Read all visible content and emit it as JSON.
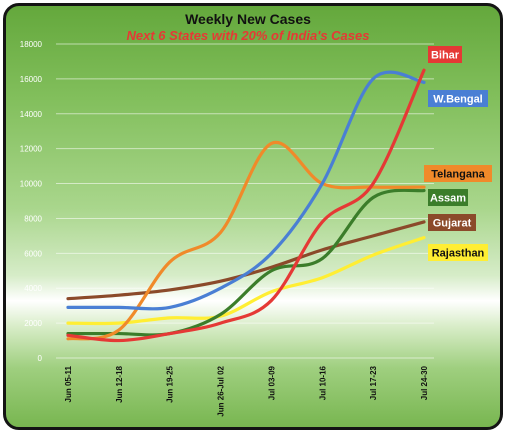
{
  "chart_data": {
    "type": "line",
    "title": "Weekly New Cases",
    "subtitle": "Next 6 States with 20% of India's Cases",
    "xlabel": "",
    "ylabel": "",
    "ylim": [
      0,
      18000
    ],
    "yticks": [
      "0",
      "2000",
      "4000",
      "6000",
      "8000",
      "10000",
      "12000",
      "14000",
      "16000",
      "18000"
    ],
    "ytick_values": [
      0,
      2000,
      4000,
      6000,
      8000,
      10000,
      12000,
      14000,
      16000,
      18000
    ],
    "categories": [
      "Jun 05-11",
      "Jun 12-18",
      "Jun 19-25",
      "Jun 26-Jul 02",
      "Jul 03-09",
      "Jul 10-16",
      "Jul 17-23",
      "Jul 24-30"
    ],
    "grid": true,
    "legend": "inline labels at right",
    "series": [
      {
        "name": "Bihar",
        "color": "#e53935",
        "values": [
          1300,
          1000,
          1400,
          2000,
          3300,
          7800,
          10000,
          16500
        ]
      },
      {
        "name": "W.Bengal",
        "color": "#4a7fd4",
        "values": [
          2900,
          2900,
          2900,
          4000,
          6000,
          10000,
          16000,
          15800
        ]
      },
      {
        "name": "Telangana",
        "color": "#f08a2a",
        "values": [
          1100,
          1600,
          5500,
          7200,
          12300,
          10000,
          9800,
          9800
        ]
      },
      {
        "name": "Assam",
        "color": "#3b7d2a",
        "values": [
          1400,
          1400,
          1400,
          2500,
          5000,
          5700,
          9200,
          9600
        ]
      },
      {
        "name": "Gujarat",
        "color": "#8b4a2a",
        "values": [
          3400,
          3600,
          3900,
          4400,
          5200,
          6200,
          7000,
          7800
        ]
      },
      {
        "name": "Rajasthan",
        "color": "#ffee33",
        "values": [
          2000,
          2000,
          2300,
          2400,
          3800,
          4600,
          5900,
          6900
        ]
      }
    ]
  }
}
